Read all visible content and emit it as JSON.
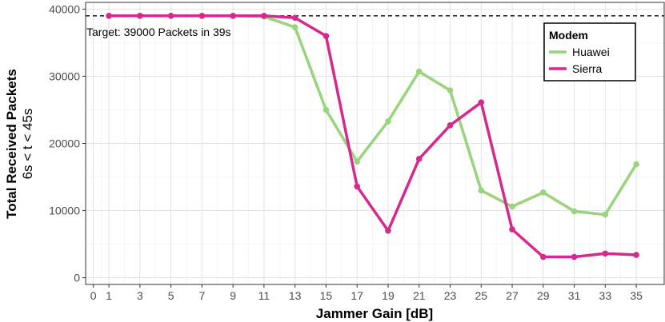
{
  "chart_data": {
    "type": "line",
    "xlabel": "Jammer Gain [dB]",
    "ylabel": "Total Received Packets",
    "ylabel_sub": "6s < t < 45s",
    "x": [
      1,
      3,
      5,
      7,
      9,
      11,
      13,
      15,
      17,
      19,
      21,
      23,
      25,
      27,
      29,
      31,
      33,
      35
    ],
    "xlim": [
      -0.5,
      36.8
    ],
    "ylim": [
      -1000,
      41000
    ],
    "x_ticks": [
      0,
      1,
      3,
      5,
      7,
      9,
      11,
      13,
      15,
      17,
      19,
      21,
      23,
      25,
      27,
      29,
      31,
      33,
      35
    ],
    "x_tick_labels": [
      "0",
      "1",
      "3",
      "5",
      "7",
      "9",
      "11",
      "13",
      "15",
      "17",
      "19",
      "21",
      "23",
      "25",
      "27",
      "29",
      "31",
      "33",
      "35"
    ],
    "y_ticks": [
      0,
      10000,
      20000,
      30000,
      40000
    ],
    "y_tick_labels": [
      "0",
      "10000",
      "20000",
      "30000",
      "40000"
    ],
    "grid": true,
    "reference_line": {
      "y": 39000,
      "style": "dashed",
      "label": "Target: 39000 Packets in 39s"
    },
    "legend": {
      "title": "Modem",
      "placement": "top-right"
    },
    "series": [
      {
        "name": "Huawei",
        "color": "#99d47c",
        "values": [
          39000,
          39000,
          39000,
          39000,
          39000,
          38900,
          37300,
          25000,
          17300,
          23300,
          30700,
          27900,
          13000,
          10600,
          12700,
          9900,
          9400,
          16900
        ]
      },
      {
        "name": "Sierra",
        "color": "#d6298e",
        "values": [
          39000,
          39000,
          39000,
          39000,
          39000,
          39000,
          38700,
          36000,
          13600,
          7000,
          17700,
          22700,
          26100,
          7200,
          3100,
          3100,
          3600,
          3400
        ]
      }
    ]
  }
}
